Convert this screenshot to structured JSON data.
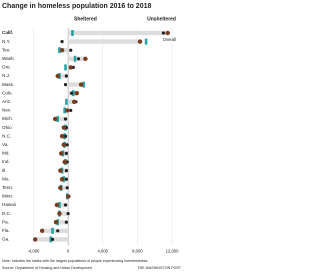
{
  "chart_data": {
    "type": "dot",
    "title": "Change in homeless population 2016 to 2018",
    "categories": [
      "Calif.",
      "N.Y.",
      "Tex.",
      "Wash.",
      "Ore.",
      "N.J.",
      "Mass.",
      "Colo.",
      "Ariz.",
      "Nev.",
      "Mich.",
      "Ohio",
      "N.C.",
      "Va.",
      "Md.",
      "Ind.",
      "Ill.",
      "Mo.",
      "Tenn.",
      "Minn.",
      "Hawaii",
      "D.C.",
      "Pa.",
      "Fla.",
      "Ga."
    ],
    "series": [
      {
        "name": "Sheltered",
        "color": "#2aa3a6",
        "values": [
          500,
          9000,
          -1000,
          800,
          -300,
          -1000,
          1800,
          600,
          -200,
          -400,
          -1200,
          -300,
          -400,
          -400,
          -600,
          -300,
          -700,
          -500,
          -800,
          -100,
          -1000,
          -1000,
          -1200,
          -1800,
          -2000
        ]
      },
      {
        "name": "Unsheltered",
        "color": "#222222",
        "values": [
          11000,
          -700,
          300,
          1200,
          600,
          -200,
          -300,
          400,
          900,
          300,
          -300,
          -200,
          -300,
          -100,
          -200,
          -100,
          -200,
          -200,
          -100,
          100,
          -300,
          0,
          -200,
          -1200,
          -1800
        ]
      },
      {
        "name": "Overall",
        "color": "#7a3b1f",
        "values": [
          11500,
          8300,
          -700,
          2000,
          300,
          -1200,
          1500,
          1000,
          700,
          -100,
          -1500,
          -500,
          -700,
          -500,
          -800,
          -400,
          -900,
          -700,
          -900,
          0,
          -1300,
          -1000,
          -1400,
          -3000,
          -3800
        ]
      }
    ],
    "xlim": [
      -4400,
      12800
    ],
    "xticks": [
      {
        "value": -4000,
        "label": "-4,000"
      },
      0,
      {
        "value": 4000,
        "label": "4,000"
      },
      {
        "value": 8000,
        "label": "8,000"
      },
      {
        "value": 12000,
        "label": "12,000"
      }
    ],
    "note": "Note: Includes the states with the largest populations of people experiencing homelessness.",
    "source": "Source: Department of Housing and Urban Development",
    "credit": "THE WASHINGTON POST"
  }
}
